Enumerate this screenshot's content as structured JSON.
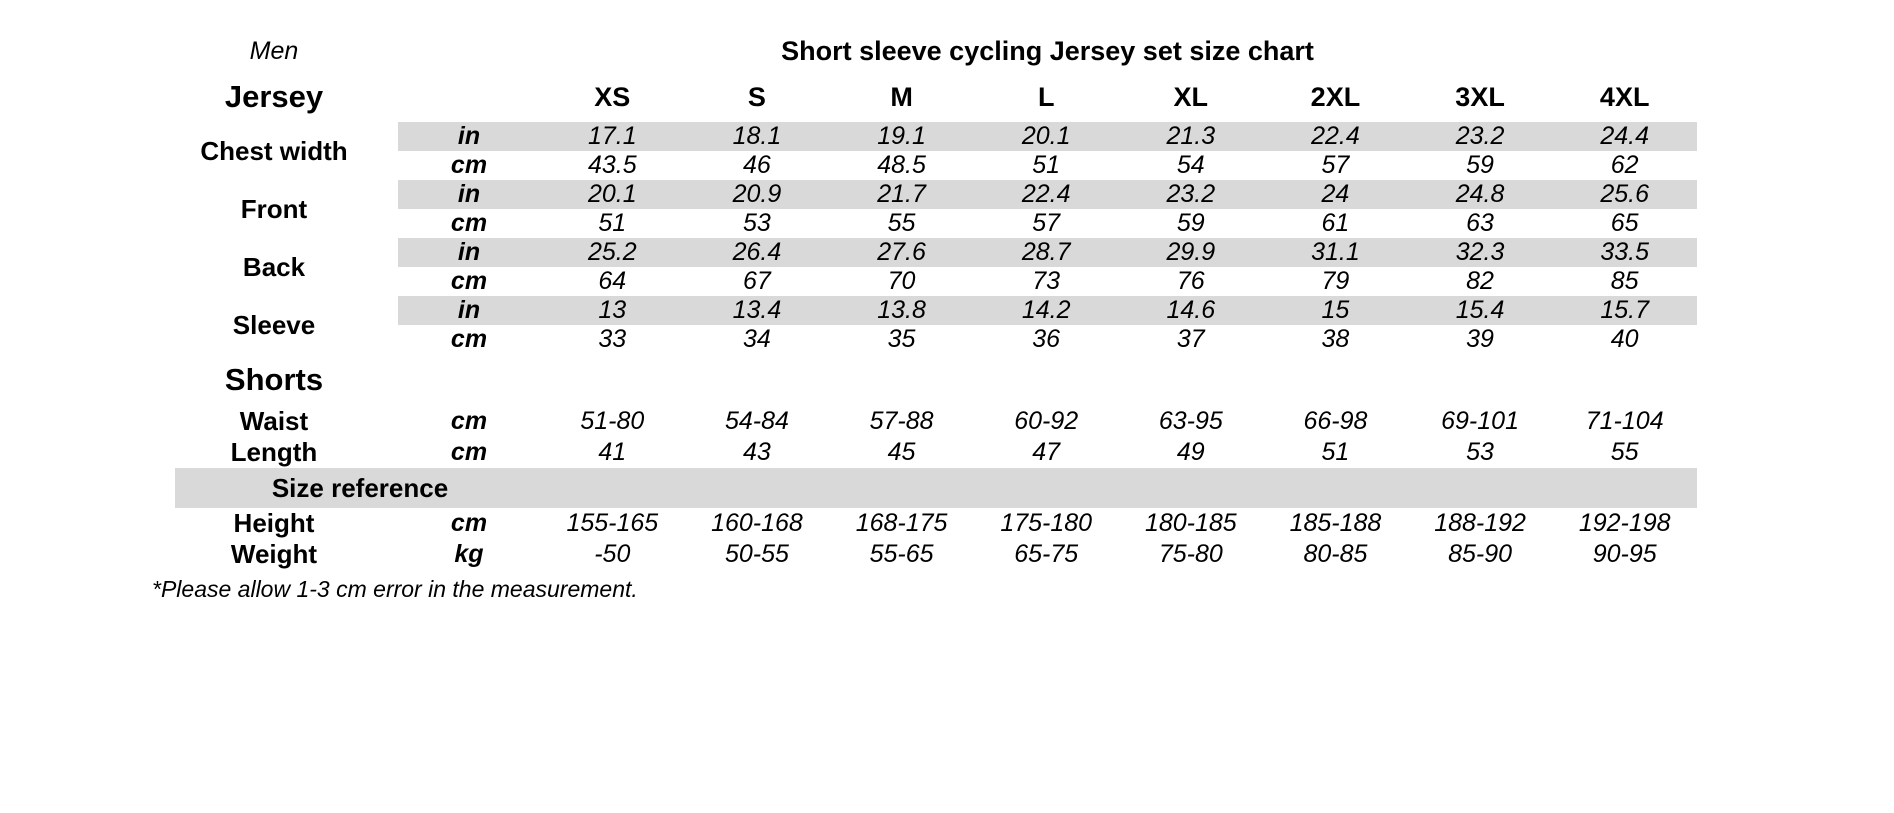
{
  "header": {
    "gender_label": "Men",
    "title": "Short sleeve cycling Jersey set size chart"
  },
  "footnote": "*Please allow 1-3 cm error in the measurement.",
  "colors": {
    "band_gray": "#d9d9d9",
    "text": "#000000",
    "background": "#ffffff"
  },
  "chart_data": {
    "type": "table",
    "title": "Short sleeve cycling Jersey set size chart",
    "size_columns": [
      "XS",
      "S",
      "M",
      "L",
      "XL",
      "2XL",
      "3XL",
      "4XL"
    ],
    "sections": [
      {
        "id": "jersey",
        "label": "Jersey",
        "groups": [
          {
            "label": "Chest width",
            "rows": [
              {
                "unit": "in",
                "shaded": true,
                "values": [
                  "17.1",
                  "18.1",
                  "19.1",
                  "20.1",
                  "21.3",
                  "22.4",
                  "23.2",
                  "24.4"
                ]
              },
              {
                "unit": "cm",
                "shaded": false,
                "values": [
                  "43.5",
                  "46",
                  "48.5",
                  "51",
                  "54",
                  "57",
                  "59",
                  "62"
                ]
              }
            ]
          },
          {
            "label": "Front",
            "rows": [
              {
                "unit": "in",
                "shaded": true,
                "values": [
                  "20.1",
                  "20.9",
                  "21.7",
                  "22.4",
                  "23.2",
                  "24",
                  "24.8",
                  "25.6"
                ]
              },
              {
                "unit": "cm",
                "shaded": false,
                "values": [
                  "51",
                  "53",
                  "55",
                  "57",
                  "59",
                  "61",
                  "63",
                  "65"
                ]
              }
            ]
          },
          {
            "label": "Back",
            "rows": [
              {
                "unit": "in",
                "shaded": true,
                "values": [
                  "25.2",
                  "26.4",
                  "27.6",
                  "28.7",
                  "29.9",
                  "31.1",
                  "32.3",
                  "33.5"
                ]
              },
              {
                "unit": "cm",
                "shaded": false,
                "values": [
                  "64",
                  "67",
                  "70",
                  "73",
                  "76",
                  "79",
                  "82",
                  "85"
                ]
              }
            ]
          },
          {
            "label": "Sleeve",
            "rows": [
              {
                "unit": "in",
                "shaded": true,
                "values": [
                  "13",
                  "13.4",
                  "13.8",
                  "14.2",
                  "14.6",
                  "15",
                  "15.4",
                  "15.7"
                ]
              },
              {
                "unit": "cm",
                "shaded": false,
                "values": [
                  "33",
                  "34",
                  "35",
                  "36",
                  "37",
                  "38",
                  "39",
                  "40"
                ]
              }
            ]
          }
        ]
      },
      {
        "id": "shorts",
        "label": "Shorts",
        "groups": [
          {
            "label": "Waist",
            "rows": [
              {
                "unit": "cm",
                "shaded": false,
                "values": [
                  "51-80",
                  "54-84",
                  "57-88",
                  "60-92",
                  "63-95",
                  "66-98",
                  "69-101",
                  "71-104"
                ]
              }
            ]
          },
          {
            "label": "Length",
            "rows": [
              {
                "unit": "cm",
                "shaded": false,
                "values": [
                  "41",
                  "43",
                  "45",
                  "47",
                  "49",
                  "51",
                  "53",
                  "55"
                ]
              }
            ]
          }
        ]
      },
      {
        "id": "size_reference",
        "label": "Size reference",
        "groups": [
          {
            "label": "Height",
            "rows": [
              {
                "unit": "cm",
                "shaded": false,
                "values": [
                  "155-165",
                  "160-168",
                  "168-175",
                  "175-180",
                  "180-185",
                  "185-188",
                  "188-192",
                  "192-198"
                ]
              }
            ]
          },
          {
            "label": "Weight",
            "rows": [
              {
                "unit": "kg",
                "shaded": false,
                "values": [
                  "-50",
                  "50-55",
                  "55-65",
                  "65-75",
                  "75-80",
                  "80-85",
                  "85-90",
                  "90-95"
                ]
              }
            ]
          }
        ]
      }
    ]
  }
}
